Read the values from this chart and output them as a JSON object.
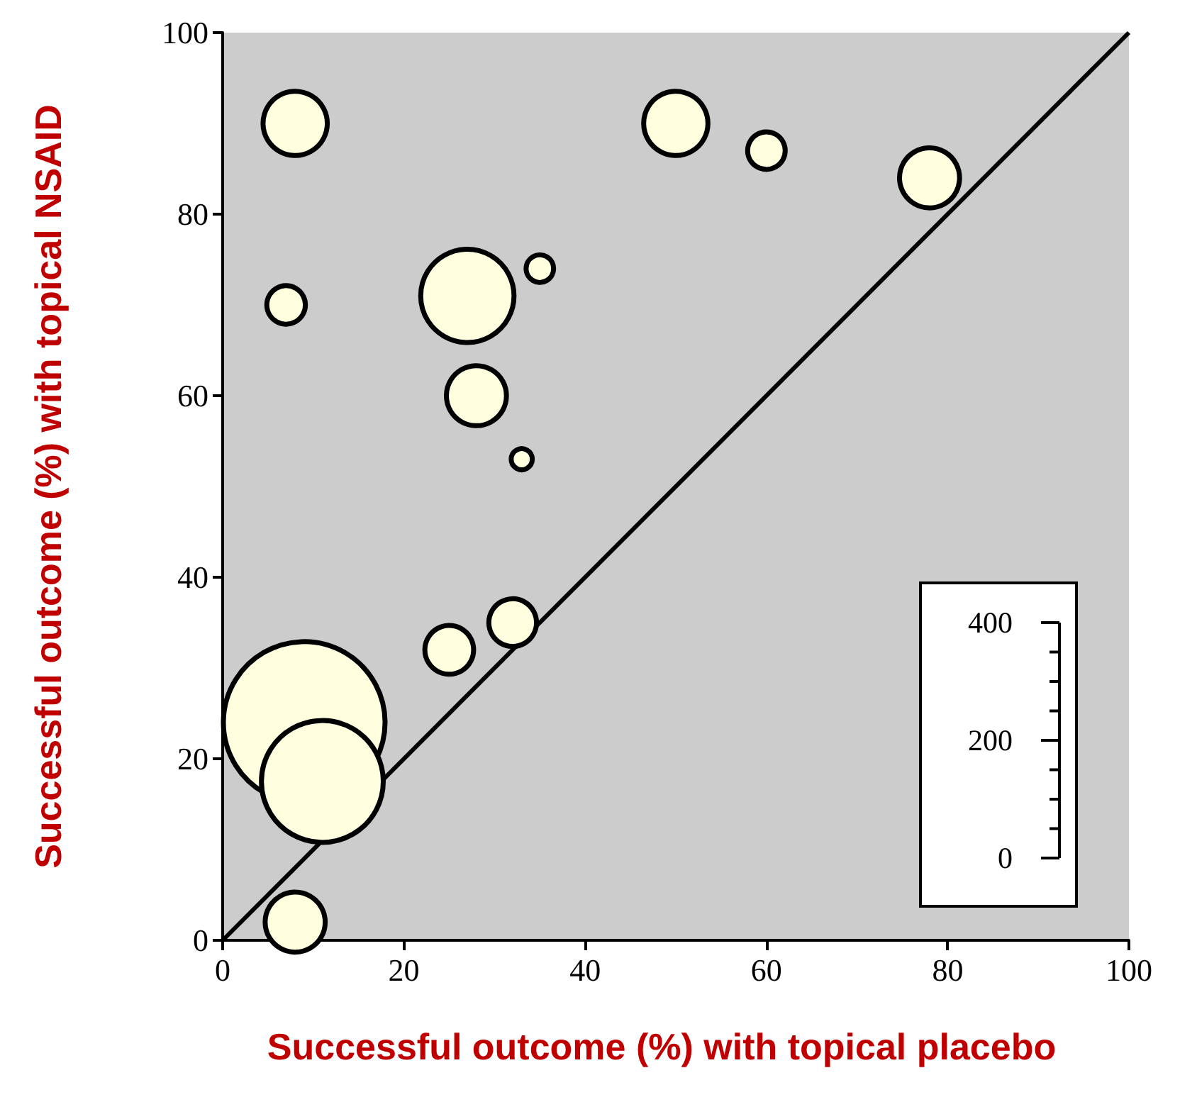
{
  "chart_data": {
    "type": "bubble",
    "xlabel": "Successful outcome (%) with topical placebo",
    "ylabel": "Successful outcome (%) with topical NSAID",
    "xlim": [
      0,
      100
    ],
    "ylim": [
      0,
      100
    ],
    "xticks": [
      0,
      20,
      40,
      60,
      80,
      100
    ],
    "yticks": [
      0,
      20,
      40,
      60,
      80,
      100
    ],
    "grid": false,
    "annotations": [
      "400",
      "200",
      "0"
    ],
    "series": [
      {
        "color": "#ffffe0",
        "x": [
          8,
          50,
          60,
          78,
          7,
          35,
          27,
          28,
          33,
          32,
          25,
          9,
          11,
          8
        ],
        "values": [
          90,
          90,
          87,
          84,
          70,
          74,
          71,
          60,
          53,
          35,
          32,
          24,
          17.5,
          2
        ],
        "sizes": [
          0.158,
          0.158,
          0.054,
          0.138,
          0.057,
          0.029,
          0.333,
          0.138,
          0.017,
          0.087,
          0.091,
          1,
          0.568,
          0.138
        ]
      },
      {
        "type": "line",
        "color": "#000000",
        "x": [
          0,
          100
        ],
        "values": [
          0,
          100
        ],
        "marker": "none"
      }
    ]
  }
}
